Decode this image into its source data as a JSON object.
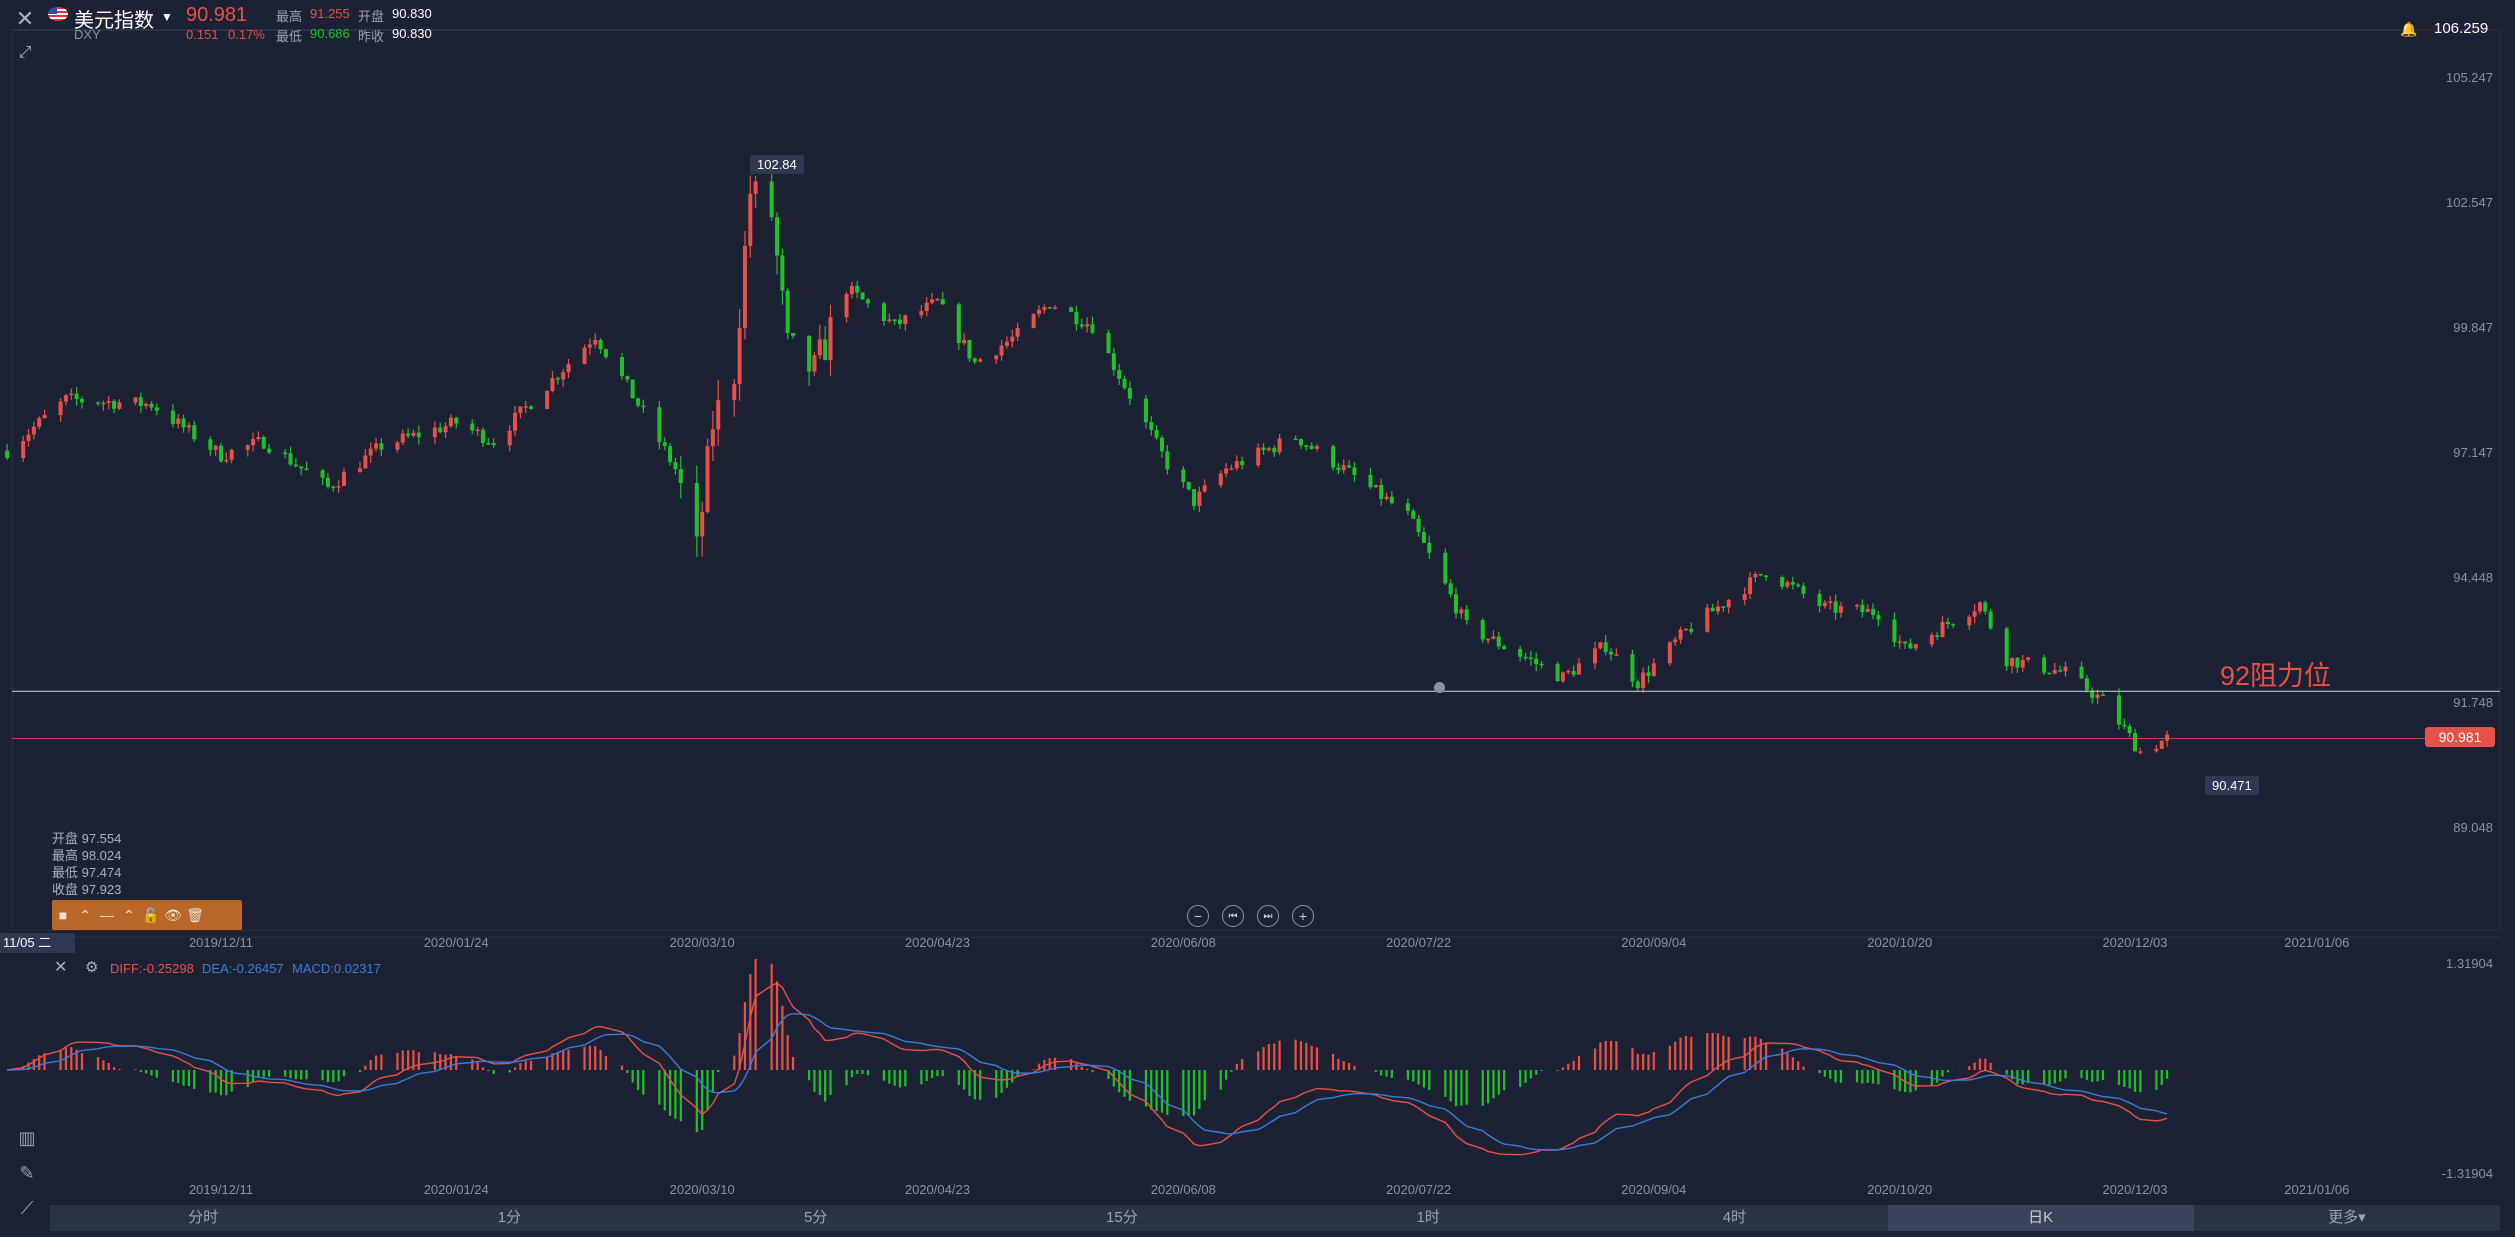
{
  "header": {
    "instrument_name": "美元指数",
    "symbol": "DXY",
    "last_price": "90.981",
    "change": "0.151",
    "change_pct": "0.17%",
    "high_label": "最高",
    "high_value": "91.255",
    "open_label": "开盘",
    "open_value": "90.830",
    "low_label": "最低",
    "low_value": "90.686",
    "prev_close_label": "昨收",
    "prev_close_value": "90.830",
    "alert_price": "106.259"
  },
  "ohlc_legend": {
    "open": "开盘 97.554",
    "high": "最高 98.024",
    "low": "最低 97.474",
    "close": "收盘 97.923"
  },
  "annotations": {
    "resistance_text": "92阻力位",
    "max_label": "102.84",
    "min_label": "90.471",
    "price_tag": "90.981",
    "crosshair_date": "11/05 二"
  },
  "macd_legend": {
    "diff": "DIFF:-0.25298",
    "dea": "DEA:-0.26457",
    "macd": "MACD:0.02317"
  },
  "timeframes": [
    {
      "label": "分时",
      "active": false
    },
    {
      "label": "1分",
      "active": false
    },
    {
      "label": "5分",
      "active": false
    },
    {
      "label": "15分",
      "active": false
    },
    {
      "label": "1时",
      "active": false
    },
    {
      "label": "4时",
      "active": false
    },
    {
      "label": "日K",
      "active": true
    },
    {
      "label": "更多▾",
      "active": false
    }
  ],
  "colors": {
    "up": "#e8504a",
    "down": "#1fc12d",
    "dea": "#3b7bd8",
    "bg": "#1c2233",
    "resistance_text": "#e8504a"
  },
  "chart_data": [
    {
      "type": "candlestick",
      "title": "美元指数",
      "ylim": [
        88.5,
        106.3
      ],
      "y_ticks": [
        "105.247",
        "102.547",
        "99.847",
        "97.147",
        "94.448",
        "91.748",
        "89.048"
      ],
      "x_ticks": [
        "2019/12/11",
        "2020/01/24",
        "2020/03/10",
        "2020/04/23",
        "2020/06/08",
        "2020/07/22",
        "2020/09/04",
        "2020/10/20",
        "2020/12/03",
        "2021/01/06"
      ],
      "resistance_level": 92.0,
      "current_price": 90.981,
      "anchors": [
        {
          "date": "2019-11-01",
          "close": 97.2
        },
        {
          "date": "2019-11-12",
          "close": 98.3
        },
        {
          "date": "2019-11-28",
          "close": 98.2
        },
        {
          "date": "2019-12-11",
          "close": 97.1
        },
        {
          "date": "2019-12-19",
          "close": 97.4
        },
        {
          "date": "2019-12-31",
          "close": 96.4
        },
        {
          "date": "2020-01-10",
          "close": 97.3
        },
        {
          "date": "2020-01-24",
          "close": 97.8
        },
        {
          "date": "2020-01-31",
          "close": 97.4
        },
        {
          "date": "2020-02-19",
          "close": 99.7
        },
        {
          "date": "2020-02-27",
          "close": 98.2
        },
        {
          "date": "2020-03-05",
          "close": 96.8
        },
        {
          "date": "2020-03-09",
          "close": 95.0
        },
        {
          "date": "2020-03-12",
          "close": 97.8
        },
        {
          "date": "2020-03-16",
          "close": 98.9
        },
        {
          "date": "2020-03-19",
          "close": 102.8
        },
        {
          "date": "2020-03-23",
          "close": 102.3
        },
        {
          "date": "2020-03-26",
          "close": 99.4
        },
        {
          "date": "2020-03-31",
          "close": 98.9
        },
        {
          "date": "2020-04-06",
          "close": 100.7
        },
        {
          "date": "2020-04-15",
          "close": 99.9
        },
        {
          "date": "2020-04-23",
          "close": 100.4
        },
        {
          "date": "2020-04-30",
          "close": 99.1
        },
        {
          "date": "2020-05-08",
          "close": 99.7
        },
        {
          "date": "2020-05-14",
          "close": 100.4
        },
        {
          "date": "2020-05-22",
          "close": 99.9
        },
        {
          "date": "2020-05-29",
          "close": 98.4
        },
        {
          "date": "2020-06-05",
          "close": 96.9
        },
        {
          "date": "2020-06-10",
          "close": 96.1
        },
        {
          "date": "2020-06-16",
          "close": 96.8
        },
        {
          "date": "2020-06-29",
          "close": 97.5
        },
        {
          "date": "2020-07-08",
          "close": 96.8
        },
        {
          "date": "2020-07-20",
          "close": 95.8
        },
        {
          "date": "2020-07-31",
          "close": 93.4
        },
        {
          "date": "2020-08-18",
          "close": 92.3
        },
        {
          "date": "2020-08-26",
          "close": 93.0
        },
        {
          "date": "2020-09-01",
          "close": 92.2
        },
        {
          "date": "2020-09-10",
          "close": 93.3
        },
        {
          "date": "2020-09-25",
          "close": 94.6
        },
        {
          "date": "2020-10-06",
          "close": 93.8
        },
        {
          "date": "2020-10-16",
          "close": 93.7
        },
        {
          "date": "2020-10-21",
          "close": 92.9
        },
        {
          "date": "2020-11-04",
          "close": 93.9
        },
        {
          "date": "2020-11-09",
          "close": 92.7
        },
        {
          "date": "2020-11-20",
          "close": 92.4
        },
        {
          "date": "2020-11-27",
          "close": 91.8
        },
        {
          "date": "2020-12-04",
          "close": 90.7
        },
        {
          "date": "2020-12-09",
          "close": 90.98
        }
      ]
    },
    {
      "type": "macd",
      "ylim": [
        -1.31904,
        1.31904
      ],
      "y_ticks": [
        "1.31904",
        "-1.31904"
      ],
      "diff": -0.25298,
      "dea": -0.26457,
      "macd": 0.02317
    }
  ]
}
